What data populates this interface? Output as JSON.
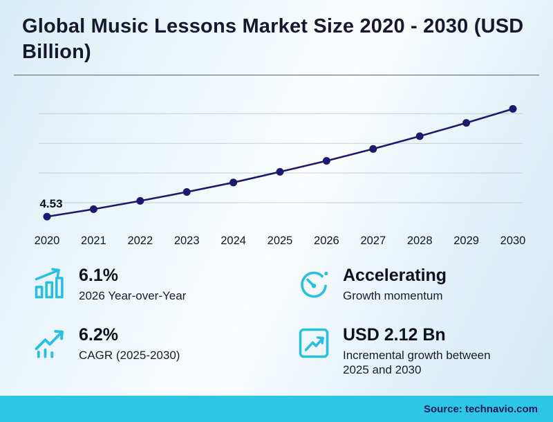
{
  "title": "Global Music Lessons Market Size 2020 - 2030 (USD Billion)",
  "colors": {
    "line": "#1b1b6e",
    "accent": "#29bfdf",
    "footer_bg": "#2ec6e6",
    "gridline": "#c7ced4",
    "title_text": "#17172f"
  },
  "chart_data": {
    "type": "line",
    "title": "Global Music Lessons Market Size 2020 - 2030 (USD Billion)",
    "x": [
      "2020",
      "2021",
      "2022",
      "2023",
      "2024",
      "2025",
      "2026",
      "2027",
      "2028",
      "2029",
      "2030"
    ],
    "values": [
      4.53,
      4.78,
      5.06,
      5.36,
      5.68,
      6.04,
      6.41,
      6.81,
      7.24,
      7.69,
      8.16
    ],
    "point_label": "4.53",
    "xlabel": "",
    "ylabel": "USD Billion",
    "ylim": [
      4.3,
      8.45
    ],
    "gridlines": [
      5,
      6,
      7,
      8
    ],
    "legend": "none",
    "grid": "horizontal"
  },
  "stats": [
    {
      "value": "6.1%",
      "label": "2026 Year-over-Year",
      "icon": "bar-chart-growth-icon"
    },
    {
      "value": "Accelerating",
      "label": "Growth momentum",
      "icon": "gauge-icon"
    },
    {
      "value": "6.2%",
      "label": "CAGR (2025-2030)",
      "icon": "trend-up-bars-icon"
    },
    {
      "value": "USD 2.12 Bn",
      "label": "Incremental growth between 2025 and 2030",
      "icon": "chart-box-icon"
    }
  ],
  "footer": {
    "source": "Source: technavio.com"
  }
}
